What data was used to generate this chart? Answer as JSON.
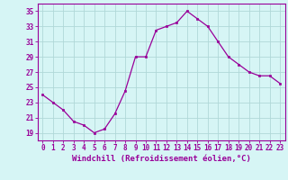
{
  "xlabel": "Windchill (Refroidissement éolien,°C)",
  "x": [
    0,
    1,
    2,
    3,
    4,
    5,
    6,
    7,
    8,
    9,
    10,
    11,
    12,
    13,
    14,
    15,
    16,
    17,
    18,
    19,
    20,
    21,
    22,
    23
  ],
  "y": [
    24.0,
    23.0,
    22.0,
    20.5,
    20.0,
    19.0,
    19.5,
    21.5,
    24.5,
    29.0,
    29.0,
    32.5,
    33.0,
    33.5,
    35.0,
    34.0,
    33.0,
    31.0,
    29.0,
    28.0,
    27.0,
    26.5,
    26.5,
    25.5
  ],
  "line_color": "#990099",
  "marker_color": "#990099",
  "bg_color": "#d6f5f5",
  "grid_color": "#b0d8d8",
  "yticks": [
    19,
    21,
    23,
    25,
    27,
    29,
    31,
    33,
    35
  ],
  "ylim": [
    18.0,
    36.0
  ],
  "xlim": [
    -0.5,
    23.5
  ],
  "xlabel_fontsize": 6.5,
  "tick_fontsize": 5.5,
  "marker_size": 2.0,
  "line_width": 0.9
}
